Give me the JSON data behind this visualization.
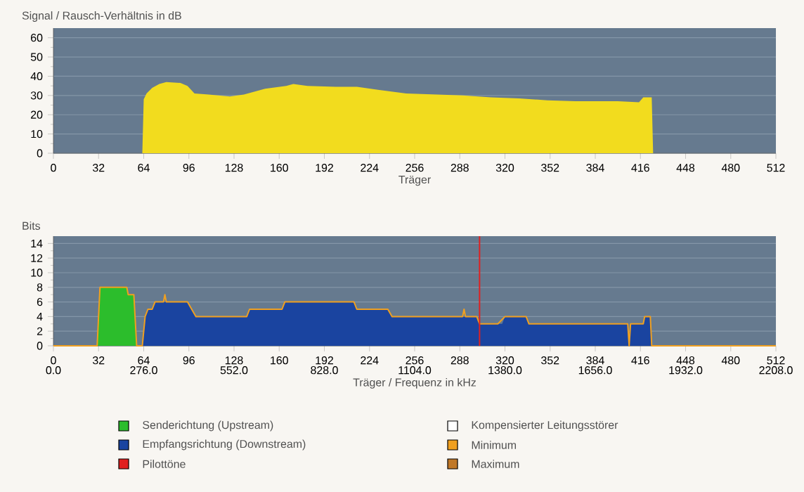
{
  "chart_data": [
    {
      "type": "area",
      "ylabel": "Signal / Rausch-Verhältnis in dB",
      "xlabel": "Träger",
      "color": "#f2dc1e",
      "x": [
        0,
        63,
        64,
        66,
        70,
        75,
        80,
        90,
        95,
        100,
        110,
        125,
        135,
        150,
        165,
        170,
        180,
        200,
        215,
        230,
        250,
        270,
        290,
        310,
        330,
        350,
        370,
        400,
        415,
        418,
        424,
        425,
        512
      ],
      "values": [
        0,
        0,
        28,
        31,
        34,
        36,
        37,
        36.5,
        35,
        31,
        30.5,
        29.5,
        30.5,
        33.5,
        35,
        36,
        35,
        34.5,
        34.5,
        33,
        31,
        30.5,
        30,
        29,
        28.5,
        27.5,
        27,
        27,
        26.5,
        29,
        29,
        0,
        0
      ],
      "xlim": [
        0,
        512
      ],
      "xticks": [
        0,
        32,
        64,
        96,
        128,
        160,
        192,
        224,
        256,
        288,
        320,
        352,
        384,
        416,
        448,
        480,
        512
      ],
      "ylim": [
        0,
        65
      ],
      "yticks": [
        0,
        10,
        20,
        30,
        40,
        50,
        60
      ],
      "grid": "y"
    },
    {
      "type": "area",
      "ylabel": "Bits",
      "xlabel": "Träger / Frequenz in kHz",
      "series": [
        {
          "name": "Senderichtung (Upstream)",
          "color": "#2cbd2c",
          "x": [
            31,
            33,
            52,
            53,
            57,
            59
          ],
          "values": [
            0,
            8,
            8,
            7,
            7,
            0
          ]
        },
        {
          "name": "Empfangsrichtung (Downstream)",
          "color": "#1a44a0",
          "x": [
            63,
            65,
            67,
            70,
            72,
            95,
            98,
            101,
            137,
            139,
            162,
            164,
            213,
            215,
            237,
            240,
            300,
            302,
            315,
            318,
            320,
            335,
            337,
            407,
            408,
            409,
            418,
            419,
            423,
            424
          ],
          "values": [
            0,
            4,
            5,
            5,
            6,
            6,
            5,
            4,
            4,
            5,
            5,
            6,
            6,
            5,
            5,
            4,
            4,
            3,
            3,
            3,
            4,
            4,
            3,
            3,
            0,
            3,
            3,
            4,
            4,
            0
          ]
        },
        {
          "name": "Kompensierter Leitungsstörer",
          "color": "#ffffff",
          "type": "line"
        },
        {
          "name": "Minimum",
          "color": "#f0a020",
          "type": "line",
          "x": [
            0,
            31,
            33,
            52,
            53,
            57,
            59,
            63,
            65,
            67,
            70,
            72,
            78,
            79,
            80,
            95,
            98,
            101,
            137,
            139,
            162,
            164,
            213,
            215,
            237,
            240,
            290,
            291,
            292,
            300,
            302,
            315,
            320,
            335,
            337,
            407,
            408,
            409,
            418,
            419,
            423,
            424,
            512
          ],
          "values": [
            0,
            0,
            8,
            8,
            7,
            7,
            0,
            0,
            4,
            5,
            5,
            6,
            6,
            7,
            6,
            6,
            5,
            4,
            4,
            5,
            5,
            6,
            6,
            5,
            5,
            4,
            4,
            5,
            4,
            4,
            3,
            3,
            4,
            4,
            3,
            3,
            0,
            3,
            3,
            4,
            4,
            0,
            0
          ]
        },
        {
          "name": "Maximum",
          "color": "#c07828",
          "type": "line"
        }
      ],
      "ref_lines": [
        {
          "axis": "x",
          "value": 302,
          "label": "Pilottöne",
          "color": "#e02020"
        }
      ],
      "xlim": [
        0,
        512
      ],
      "xticks": [
        0,
        32,
        64,
        96,
        128,
        160,
        192,
        224,
        256,
        288,
        320,
        352,
        384,
        416,
        448,
        480,
        512
      ],
      "x2lim": [
        0,
        2208
      ],
      "x2ticks": [
        {
          "value": 0,
          "label": "0.0"
        },
        {
          "value": 276,
          "label": "276.0"
        },
        {
          "value": 552,
          "label": "552.0"
        },
        {
          "value": 828,
          "label": "828.0"
        },
        {
          "value": 1104,
          "label": "1104.0"
        },
        {
          "value": 1380,
          "label": "1380.0"
        },
        {
          "value": 1656,
          "label": "1656.0"
        },
        {
          "value": 1932,
          "label": "1932.0"
        },
        {
          "value": 2208,
          "label": "2208.0"
        }
      ],
      "ylim": [
        0,
        15
      ],
      "yticks": [
        0,
        2,
        4,
        6,
        8,
        10,
        12,
        14
      ],
      "grid": "y",
      "legend": "bottom"
    }
  ]
}
